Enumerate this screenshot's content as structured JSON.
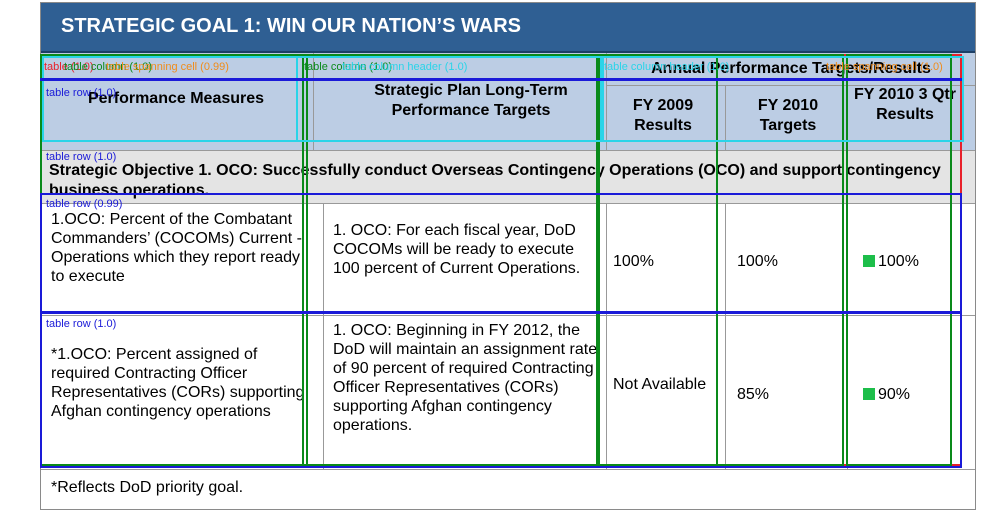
{
  "title": "STRATEGIC GOAL 1:  WIN OUR NATION’S WARS",
  "headers": {
    "performance_measures": "Performance Measures",
    "long_term_targets": "Strategic Plan Long-Term Performance Targets",
    "annual_targets": "Annual Performance Targets/Results",
    "fy2009_results": "FY 2009 Results",
    "fy2010_targets": "FY 2010 Targets",
    "fy2010_qtr_results": "FY 2010 3 Qtr Results"
  },
  "objective": "Strategic Objective 1.  OCO:  Successfully conduct Overseas Contingency Operations (OCO) and support contingency business operations.",
  "rows": [
    {
      "measure": "1.OCO:  Percent of the Combatant Commanders’ (COCOMs) Current -Operations which they report ready to execute",
      "target": "1. OCO:  For each fiscal year, DoD COCOMs will be ready to execute 100 percent of Current Operations.",
      "fy2009": "100%",
      "fy2010_target": "100%",
      "fy2010_result": "100%"
    },
    {
      "measure": "*1.OCO:  Percent assigned of required Contracting Officer Representatives (CORs) supporting Afghan contingency operations",
      "target": "1. OCO:  Beginning in FY 2012, the DoD will maintain an assignment rate of 90 percent of required Contracting Officer Representatives (CORs) supporting Afghan contingency operations.",
      "fy2009": "Not Available",
      "fy2010_target": "85%",
      "fy2010_result": "90%"
    }
  ],
  "footnote": "*Reflects DoD priority goal.",
  "overlay_labels": {
    "table": "table (1.0)",
    "column_0": "table column (1.0)",
    "row_0": "table row (1.0)",
    "spanning_cell": "table spanning cell (0.99)",
    "column_1": "table column (1.0)",
    "column_header": "table column header (1.0)",
    "row_header": "table row (1.0)",
    "row_objective": "table row (1.0)",
    "row_1": "table row (0.99)",
    "row_2": "table row (1.0)",
    "col_headers_right": "table column header (1.0)",
    "spanning_cell_right": "table spanning cell (1.0)"
  },
  "colors": {
    "header_fill": "#bccde4",
    "title_fill": "#2f5f93",
    "status_green": "#1dbe4a",
    "overlay_table": "#e8202a",
    "overlay_column": "#0a8a1a",
    "overlay_row": "#1a1ad8",
    "overlay_header": "#2ad4e8",
    "overlay_spanning": "#f08c1a"
  }
}
